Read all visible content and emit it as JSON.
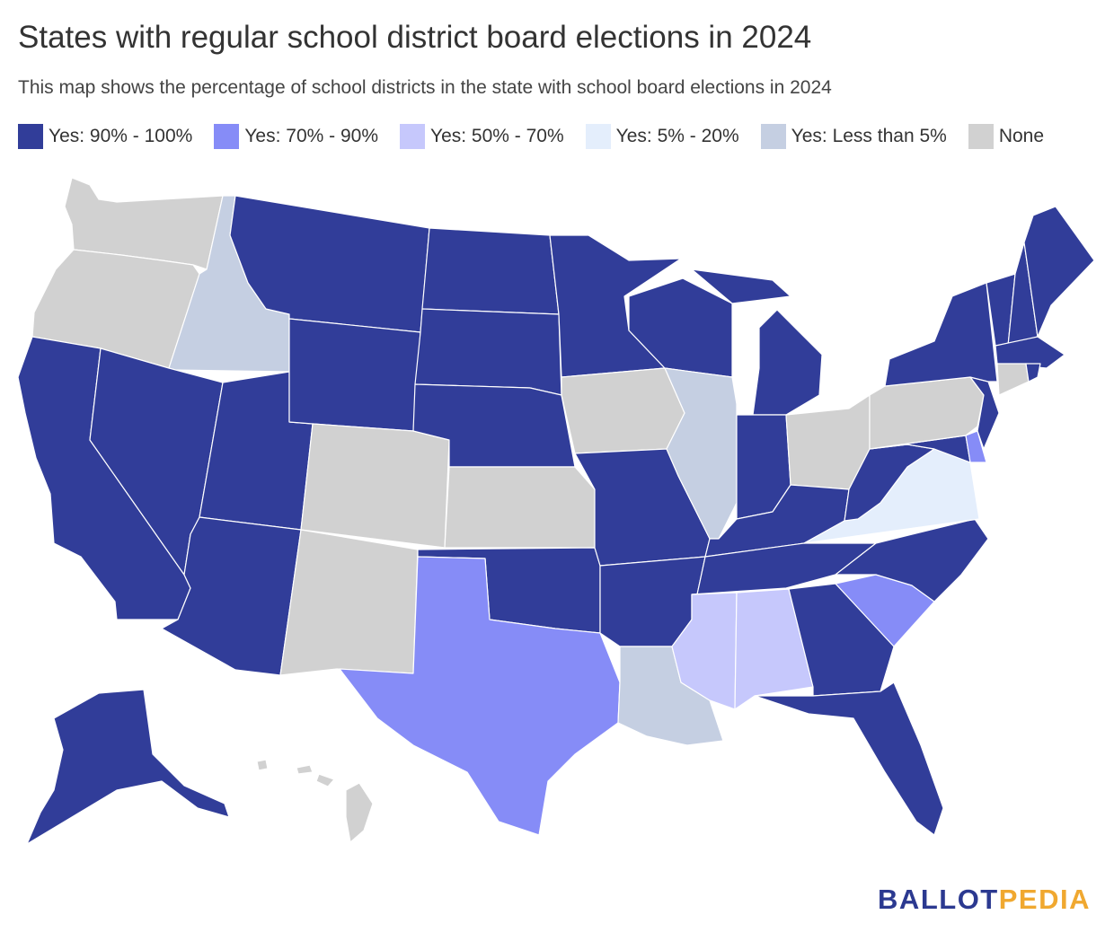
{
  "title": "States with regular school district board elections in 2024",
  "subtitle": "This map shows the percentage of school districts in the state with school board elections in 2024",
  "legend": [
    {
      "key": "y90",
      "label": "Yes: 90% - 100%",
      "color": "#313d99"
    },
    {
      "key": "y70",
      "label": "Yes: 70% - 90%",
      "color": "#868cf7"
    },
    {
      "key": "y50",
      "label": "Yes: 50% - 70%",
      "color": "#c6c8fc"
    },
    {
      "key": "y5",
      "label": "Yes: 5% - 20%",
      "color": "#e4eefc"
    },
    {
      "key": "ylt5",
      "label": "Yes: Less than 5%",
      "color": "#c5cfe2"
    },
    {
      "key": "none",
      "label": "None",
      "color": "#d1d1d1"
    }
  ],
  "states": {
    "WA": "none",
    "OR": "none",
    "CA": "y90",
    "ID": "ylt5",
    "NV": "y90",
    "UT": "y90",
    "AZ": "y90",
    "MT": "y90",
    "WY": "y90",
    "CO": "none",
    "NM": "none",
    "ND": "y90",
    "SD": "y90",
    "NE": "y90",
    "KS": "none",
    "OK": "y90",
    "TX": "y70",
    "MN": "y90",
    "IA": "none",
    "MO": "y90",
    "AR": "y90",
    "LA": "ylt5",
    "WI": "y90",
    "IL": "ylt5",
    "MI": "y90",
    "IN": "y90",
    "OH": "none",
    "KY": "y90",
    "TN": "y90",
    "MS": "y50",
    "AL": "y50",
    "GA": "y90",
    "FL": "y90",
    "SC": "y70",
    "NC": "y90",
    "VA": "y5",
    "WV": "y90",
    "PA": "none",
    "NY": "y90",
    "VT": "y90",
    "NH": "y90",
    "ME": "y90",
    "MA": "y90",
    "RI": "y90",
    "CT": "none",
    "NJ": "y90",
    "DE": "y70",
    "MD": "y90",
    "AK": "y90",
    "HI": "none"
  },
  "brand": {
    "part1": "BALLOT",
    "part2": "PEDIA"
  }
}
